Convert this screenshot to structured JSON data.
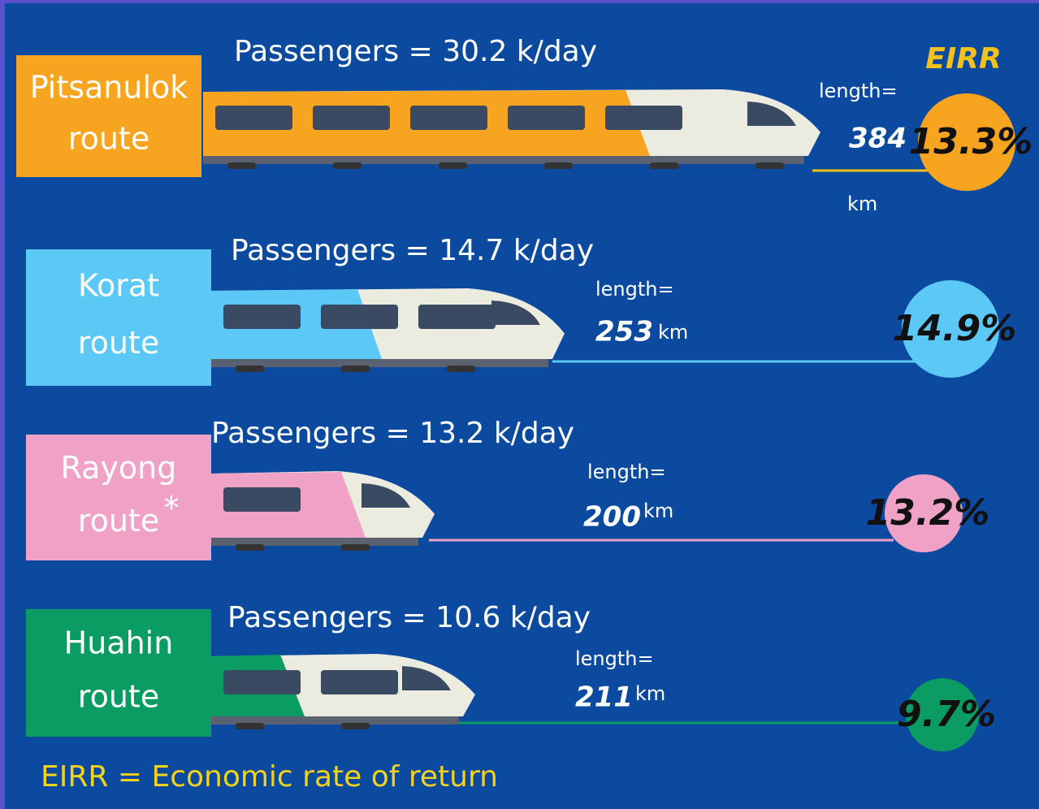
{
  "header": {
    "eirr_title": "EIRR"
  },
  "routes": [
    {
      "name_line1": "Pitsanulok",
      "name_line2": "route",
      "passengers": "Passengers = 30.2 k/day",
      "length_label": "length=",
      "length": "384",
      "unit": "km",
      "eirr": "13.3%"
    },
    {
      "name_line1": "Korat",
      "name_line2": "route",
      "passengers": "Passengers = 14.7 k/day",
      "length_label": "length=",
      "length": "253",
      "unit": "km",
      "eirr": "14.9%"
    },
    {
      "name_line1": "Rayong",
      "name_line2": "route",
      "note": "*",
      "passengers": "Passengers = 13.2 k/day",
      "length_label": "length=",
      "length": "200",
      "unit": "km",
      "eirr": "13.2%"
    },
    {
      "name_line1": "Huahin",
      "name_line2": "route",
      "passengers": "Passengers = 10.6 k/day",
      "length_label": "length=",
      "length": "211",
      "unit": "km",
      "eirr": "9.7%"
    }
  ],
  "footer": "EIRR = Economic rate of return"
}
